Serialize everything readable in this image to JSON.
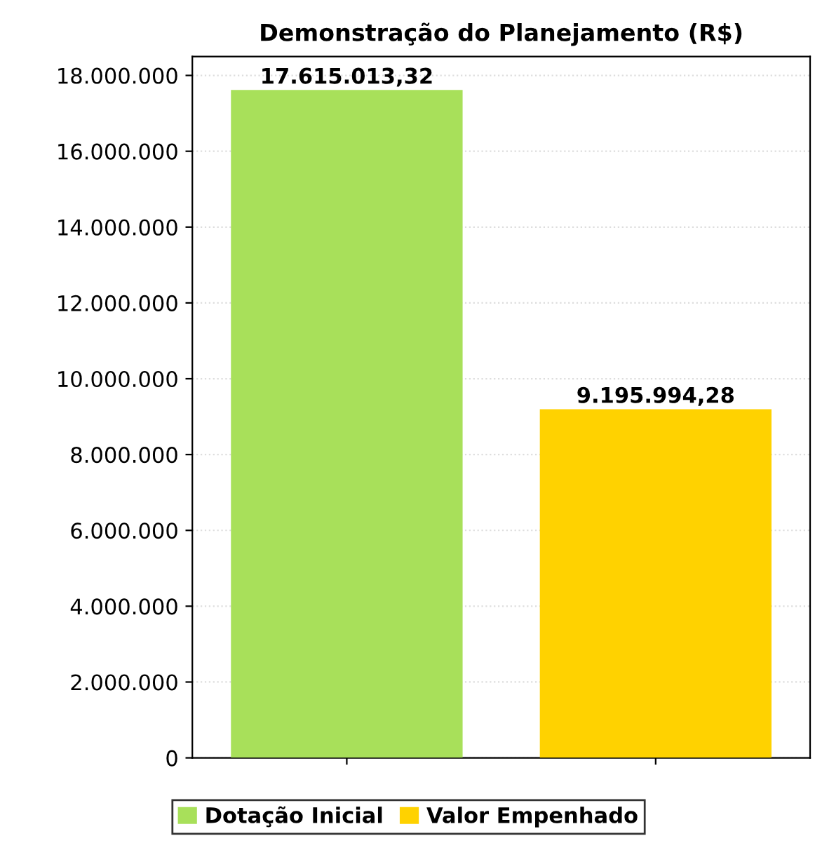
{
  "chart_data": {
    "type": "bar",
    "title": "Demonstração do Planejamento (R$)",
    "categories": [
      null,
      null
    ],
    "series": [
      {
        "name": "Dotação Inicial",
        "color": "#a8e05a",
        "values": [
          17615013.32,
          null
        ],
        "value_labels": [
          "17.615.013,32",
          null
        ]
      },
      {
        "name": "Valor Empenhado",
        "color": "#ffd200",
        "values": [
          null,
          9195994.28
        ],
        "value_labels": [
          null,
          "9.195.994,28"
        ]
      }
    ],
    "ylim": [
      0,
      18500000
    ],
    "yticks": [
      {
        "value": 0,
        "label": "0"
      },
      {
        "value": 2000000,
        "label": "2.000.000"
      },
      {
        "value": 4000000,
        "label": "4.000.000"
      },
      {
        "value": 6000000,
        "label": "6.000.000"
      },
      {
        "value": 8000000,
        "label": "8.000.000"
      },
      {
        "value": 10000000,
        "label": "10.000.000"
      },
      {
        "value": 12000000,
        "label": "12.000.000"
      },
      {
        "value": 14000000,
        "label": "14.000.000"
      },
      {
        "value": 16000000,
        "label": "16.000.000"
      },
      {
        "value": 18000000,
        "label": "18.000.000"
      }
    ],
    "grid": "y",
    "legend": "bottom"
  }
}
